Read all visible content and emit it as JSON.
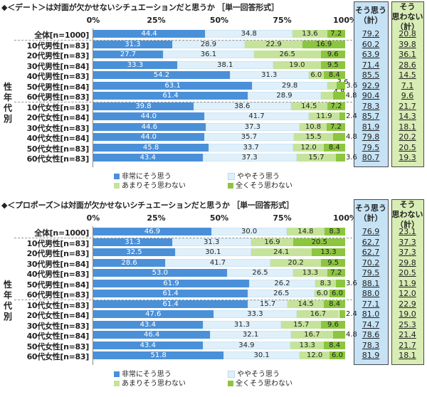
{
  "colors": {
    "c1": "#4a90d9",
    "c2": "#dff0fa",
    "c3": "#c5e39a",
    "c4": "#8cc63f"
  },
  "legend": [
    "非常にそう思う",
    "ややそう思う",
    "あまりそう思わない",
    "全くそう思わない"
  ],
  "group_label": "性年代別",
  "axis_ticks": [
    "0%",
    "25%",
    "50%",
    "75%",
    "100%"
  ],
  "chart_data": [
    {
      "type": "bar",
      "stacked": true,
      "orientation": "horizontal",
      "title": "◆＜デート＞は対面が欠かせないシチュエーションだと思うか ［単一回答形式］",
      "categories": [
        "全体[n=1000]",
        "10代男性[n=83]",
        "20代男性[n=83]",
        "30代男性[n=84]",
        "40代男性[n=83]",
        "50代男性[n=84]",
        "60代男性[n=83]",
        "10代女性[n=83]",
        "20代女性[n=84]",
        "30代女性[n=83]",
        "40代女性[n=84]",
        "50代女性[n=83]",
        "60代女性[n=83]"
      ],
      "series": [
        {
          "name": "非常にそう思う",
          "values": [
            44.4,
            31.3,
            27.7,
            33.3,
            54.2,
            63.1,
            61.4,
            39.8,
            44.0,
            44.6,
            44.0,
            45.8,
            43.4
          ]
        },
        {
          "name": "ややそう思う",
          "values": [
            34.8,
            28.9,
            36.1,
            38.1,
            31.3,
            29.8,
            28.9,
            38.6,
            41.7,
            37.3,
            35.7,
            33.7,
            37.3
          ]
        },
        {
          "name": "あまりそう思わない",
          "values": [
            13.6,
            22.9,
            26.5,
            19.0,
            6.0,
            3.6,
            4.8,
            14.5,
            11.9,
            10.8,
            15.5,
            12.0,
            15.7
          ]
        },
        {
          "name": "全くそう思わない",
          "values": [
            7.2,
            16.9,
            9.6,
            9.5,
            8.4,
            3.6,
            4.8,
            7.2,
            2.4,
            7.2,
            4.8,
            8.4,
            3.6
          ]
        }
      ],
      "summary": {
        "agree_header": [
          "そう思う",
          "（計）"
        ],
        "disagree_header": [
          "そう",
          "思わない",
          "（計）"
        ],
        "agree": [
          "79.2",
          "60.2",
          "63.9",
          "71.4",
          "85.5",
          "92.9",
          "90.4",
          "78.3",
          "85.7",
          "81.9",
          "79.8",
          "79.5",
          "80.7"
        ],
        "disagree": [
          "20.8",
          "39.8",
          "36.1",
          "28.6",
          "14.5",
          "7.1",
          "9.6",
          "21.7",
          "14.3",
          "18.1",
          "20.2",
          "20.5",
          "19.3"
        ]
      },
      "xlim": [
        0,
        100
      ]
    },
    {
      "type": "bar",
      "stacked": true,
      "orientation": "horizontal",
      "title": "◆＜プロポーズ＞は対面が欠かせないシチュエーションだと思うか ［単一回答形式］",
      "categories": [
        "全体[n=1000]",
        "10代男性[n=83]",
        "20代男性[n=83]",
        "30代男性[n=84]",
        "40代男性[n=83]",
        "50代男性[n=84]",
        "60代男性[n=83]",
        "10代女性[n=83]",
        "20代女性[n=84]",
        "30代女性[n=83]",
        "40代女性[n=84]",
        "50代女性[n=83]",
        "60代女性[n=83]"
      ],
      "series": [
        {
          "name": "非常にそう思う",
          "values": [
            46.9,
            31.3,
            32.5,
            28.6,
            53.0,
            61.9,
            61.4,
            61.4,
            47.6,
            43.4,
            46.4,
            43.4,
            51.8
          ]
        },
        {
          "name": "ややそう思う",
          "values": [
            30.0,
            31.3,
            30.1,
            41.7,
            26.5,
            26.2,
            26.5,
            15.7,
            33.3,
            31.3,
            32.1,
            34.9,
            30.1
          ]
        },
        {
          "name": "あまりそう思わない",
          "values": [
            14.8,
            16.9,
            24.1,
            20.2,
            13.3,
            8.3,
            6.0,
            14.5,
            16.7,
            15.7,
            16.7,
            13.3,
            12.0
          ]
        },
        {
          "name": "全くそう思わない",
          "values": [
            8.3,
            20.5,
            13.3,
            9.5,
            7.2,
            3.6,
            6.0,
            8.4,
            2.4,
            9.6,
            4.8,
            8.4,
            6.0
          ]
        }
      ],
      "summary": {
        "agree_header": [
          "そう思う",
          "（計）"
        ],
        "disagree_header": [
          "そう",
          "思わない",
          "（計）"
        ],
        "agree": [
          "76.9",
          "62.7",
          "62.7",
          "70.2",
          "79.5",
          "88.1",
          "88.0",
          "77.1",
          "81.0",
          "74.7",
          "78.6",
          "78.3",
          "81.9"
        ],
        "disagree": [
          "23.1",
          "37.3",
          "37.3",
          "29.8",
          "20.5",
          "11.9",
          "12.0",
          "22.9",
          "19.0",
          "25.3",
          "21.4",
          "21.7",
          "18.1"
        ]
      },
      "xlim": [
        0,
        100
      ]
    }
  ]
}
